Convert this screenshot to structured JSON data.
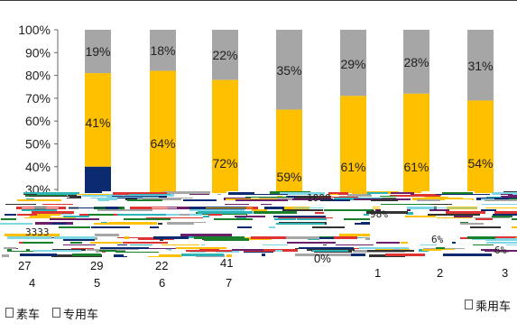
{
  "chart_data": {
    "type": "bar",
    "stacked": true,
    "percent_stacked": true,
    "ylim": [
      0,
      100
    ],
    "y_ticks": [
      30,
      40,
      50,
      60,
      70,
      80,
      90,
      100
    ],
    "y_tick_labels": [
      "30%",
      "40%",
      "50%",
      "60%",
      "70%",
      "80%",
      "90%",
      "100%"
    ],
    "grid": false,
    "colors": {
      "bottom": "#0b2a6f",
      "middle": "#ffc000",
      "top": "#a6a6a6"
    },
    "series": [
      {
        "values": [
          40,
          null,
          null,
          null,
          null,
          null,
          null
        ]
      },
      {
        "values": [
          41,
          64,
          72,
          59,
          61,
          61,
          54
        ]
      },
      {
        "values": [
          19,
          18,
          22,
          35,
          29,
          28,
          31
        ]
      }
    ],
    "bar_tops": [
      100,
      100,
      100,
      100,
      100,
      100,
      100
    ],
    "middle_tops": [
      81,
      82,
      78,
      65,
      71,
      72,
      69
    ],
    "data_labels_top": [
      "19%",
      "18%",
      "22%",
      "35%",
      "29%",
      "28%",
      "31%"
    ],
    "data_labels_middle": [
      "41%",
      "64%",
      "72%",
      "59%",
      "61%",
      "61%",
      "54%"
    ]
  },
  "fragments": {
    "left_3333": "3333",
    "mid_zero": "0%",
    "pct_right": "6%",
    "pct_a": "98%",
    "pct_b": "6%",
    "stripes": "1000"
  },
  "bottom_labels": {
    "row1": [
      "27",
      "29",
      "22",
      "41"
    ],
    "row2": [
      "4",
      "5",
      "6",
      "7"
    ],
    "right_axis_labels": [
      "1",
      "2",
      "3"
    ],
    "zero_label": "0%"
  },
  "legend": {
    "left_a": "素车",
    "left_b": "专用车",
    "right": "乘用车"
  }
}
